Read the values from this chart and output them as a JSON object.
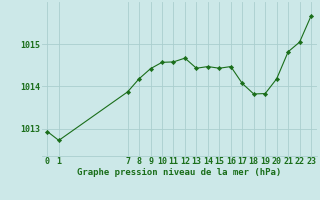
{
  "x": [
    0,
    1,
    7,
    8,
    9,
    10,
    11,
    12,
    13,
    14,
    15,
    16,
    17,
    18,
    19,
    20,
    21,
    22,
    23
  ],
  "y": [
    1012.93,
    1012.72,
    1013.87,
    1014.18,
    1014.42,
    1014.57,
    1014.58,
    1014.67,
    1014.43,
    1014.47,
    1014.43,
    1014.47,
    1014.07,
    1013.82,
    1013.83,
    1014.18,
    1014.82,
    1015.05,
    1015.67
  ],
  "line_color": "#1a6e1a",
  "marker_color": "#1a6e1a",
  "bg_color": "#cce8e8",
  "grid_color": "#aacece",
  "xlabel": "Graphe pression niveau de la mer (hPa)",
  "yticks": [
    1013,
    1014,
    1015
  ],
  "xticks": [
    0,
    1,
    7,
    8,
    9,
    10,
    11,
    12,
    13,
    14,
    15,
    16,
    17,
    18,
    19,
    20,
    21,
    22,
    23
  ],
  "ylim": [
    1012.35,
    1016.0
  ],
  "xlim": [
    -0.5,
    23.5
  ],
  "xlabel_fontsize": 6.5,
  "tick_fontsize": 6.0,
  "label_color": "#1a6e1a"
}
